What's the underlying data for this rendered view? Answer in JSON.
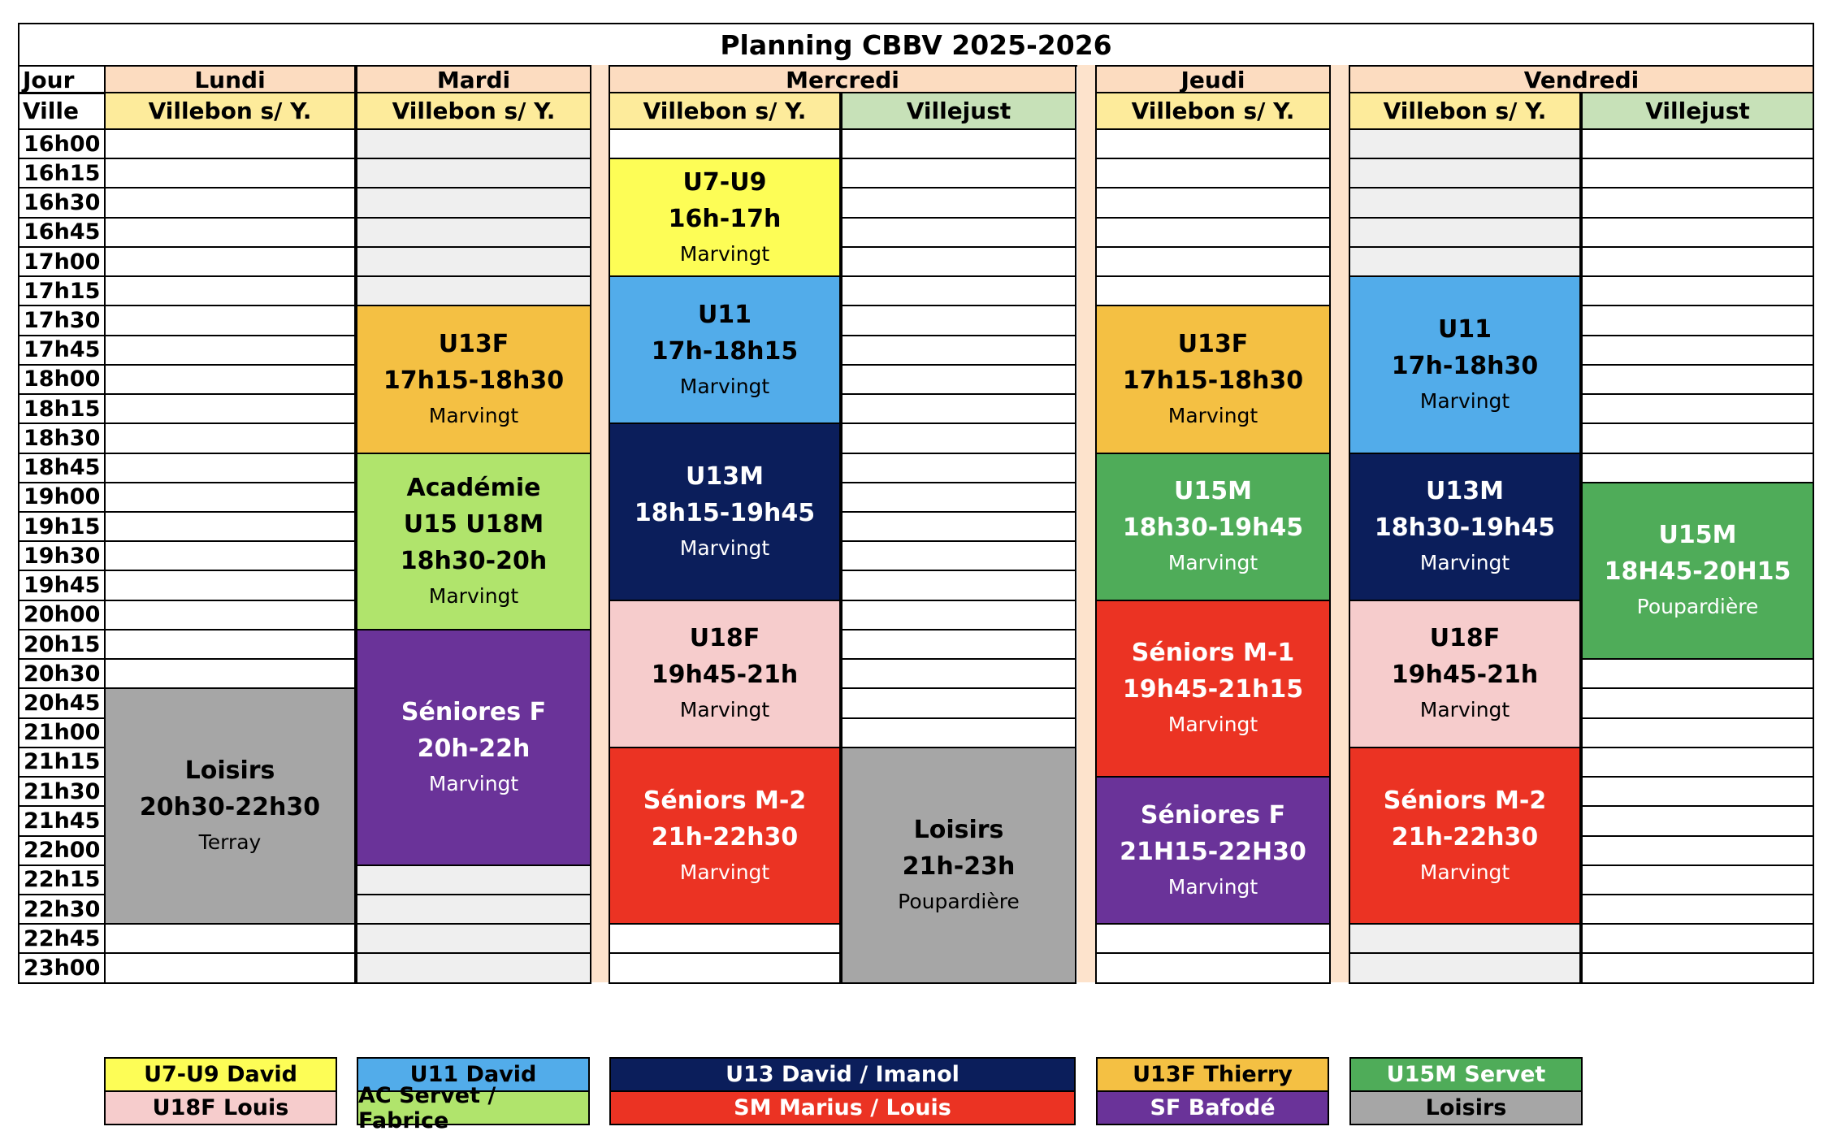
{
  "title": "Planning CBBV 2025-2026",
  "row_labels": {
    "jour": "Jour",
    "ville": "Ville"
  },
  "days": [
    {
      "name": "Lundi",
      "venues": [
        "Villebon s/ Y."
      ]
    },
    {
      "name": "Mardi",
      "venues": [
        "Villebon s/ Y."
      ]
    },
    {
      "name": "Mercredi",
      "venues": [
        "Villebon s/ Y.",
        "Villejust"
      ]
    },
    {
      "name": "Jeudi",
      "venues": [
        "Villebon s/ Y."
      ]
    },
    {
      "name": "Vendredi",
      "venues": [
        "Villebon s/ Y.",
        "Villejust"
      ]
    }
  ],
  "times": [
    "16h00",
    "16h15",
    "16h30",
    "16h45",
    "17h00",
    "17h15",
    "17h30",
    "17h45",
    "18h00",
    "18h15",
    "18h30",
    "18h45",
    "19h00",
    "19h15",
    "19h30",
    "19h45",
    "20h00",
    "20h15",
    "20h30",
    "20h45",
    "21h00",
    "21h15",
    "21h30",
    "21h45",
    "22h00",
    "22h15",
    "22h30",
    "22h45",
    "23h00"
  ],
  "colors": {
    "day_header": "#fcdcc0",
    "venue_villebon": "#fdeb9b",
    "venue_villejust": "#c7e1b8",
    "blank_shaded": "#efefef",
    "u7u9": "#fdfd56",
    "u11": "#52acea",
    "u13m": "#0b1e5b",
    "u13f": "#f4c043",
    "u15m": "#4fac59",
    "u18f": "#f6cccc",
    "academie": "#b0e46c",
    "seniors_f": "#6a3399",
    "seniors_m": "#eb3323",
    "loisirs": "#a6a6a6"
  },
  "shaded_columns": [
    1,
    5
  ],
  "events": [
    {
      "col": 0,
      "start": 19,
      "span": 8,
      "name": "Loisirs",
      "time": "20h30-22h30",
      "place": "Terray",
      "color_key": "loisirs",
      "text_color": "#000000"
    },
    {
      "col": 1,
      "start": 6,
      "span": 5,
      "name": "U13F",
      "time": "17h15-18h30",
      "place": "Marvingt",
      "color_key": "u13f",
      "text_color": "#000000"
    },
    {
      "col": 1,
      "start": 11,
      "span": 6,
      "name": "Académie\nU15 U18M",
      "time": "18h30-20h",
      "place": "Marvingt",
      "color_key": "academie",
      "text_color": "#000000"
    },
    {
      "col": 1,
      "start": 17,
      "span": 8,
      "name": "Séniores F",
      "time": "20h-22h",
      "place": "Marvingt",
      "color_key": "seniors_f",
      "text_color": "#ffffff"
    },
    {
      "col": 2,
      "start": 1,
      "span": 4,
      "name": "U7-U9",
      "time": "16h-17h",
      "place": "Marvingt",
      "color_key": "u7u9",
      "text_color": "#000000"
    },
    {
      "col": 2,
      "start": 5,
      "span": 5,
      "name": "U11",
      "time": "17h-18h15",
      "place": "Marvingt",
      "color_key": "u11",
      "text_color": "#000000"
    },
    {
      "col": 2,
      "start": 10,
      "span": 6,
      "name": "U13M",
      "time": "18h15-19h45",
      "place": "Marvingt",
      "color_key": "u13m",
      "text_color": "#ffffff"
    },
    {
      "col": 2,
      "start": 16,
      "span": 5,
      "name": "U18F",
      "time": "19h45-21h",
      "place": "Marvingt",
      "color_key": "u18f",
      "text_color": "#000000"
    },
    {
      "col": 2,
      "start": 21,
      "span": 6,
      "name": "Séniors M-2",
      "time": "21h-22h30",
      "place": "Marvingt",
      "color_key": "seniors_m",
      "text_color": "#ffffff"
    },
    {
      "col": 3,
      "start": 21,
      "span": 8,
      "name": "Loisirs",
      "time": "21h-23h",
      "place": "Poupardière",
      "color_key": "loisirs",
      "text_color": "#000000"
    },
    {
      "col": 4,
      "start": 6,
      "span": 5,
      "name": "U13F",
      "time": "17h15-18h30",
      "place": "Marvingt",
      "color_key": "u13f",
      "text_color": "#000000"
    },
    {
      "col": 4,
      "start": 11,
      "span": 5,
      "name": "U15M",
      "time": "18h30-19h45",
      "place": "Marvingt",
      "color_key": "u15m",
      "text_color": "#ffffff"
    },
    {
      "col": 4,
      "start": 16,
      "span": 6,
      "name": "Séniors M-1",
      "time": "19h45-21h15",
      "place": "Marvingt",
      "color_key": "seniors_m",
      "text_color": "#ffffff"
    },
    {
      "col": 4,
      "start": 22,
      "span": 5,
      "name": "Séniores F",
      "time": "21H15-22H30",
      "place": "Marvingt",
      "color_key": "seniors_f",
      "text_color": "#ffffff"
    },
    {
      "col": 5,
      "start": 5,
      "span": 6,
      "name": "U11",
      "time": "17h-18h30",
      "place": "Marvingt",
      "color_key": "u11",
      "text_color": "#000000"
    },
    {
      "col": 5,
      "start": 11,
      "span": 5,
      "name": "U13M",
      "time": "18h30-19h45",
      "place": "Marvingt",
      "color_key": "u13m",
      "text_color": "#ffffff"
    },
    {
      "col": 5,
      "start": 16,
      "span": 5,
      "name": "U18F",
      "time": "19h45-21h",
      "place": "Marvingt",
      "color_key": "u18f",
      "text_color": "#000000"
    },
    {
      "col": 5,
      "start": 21,
      "span": 6,
      "name": "Séniors M-2",
      "time": "21h-22h30",
      "place": "Marvingt",
      "color_key": "seniors_m",
      "text_color": "#ffffff"
    },
    {
      "col": 6,
      "start": 12,
      "span": 6,
      "name": "U15M",
      "time": "18H45-20H15",
      "place": "Poupardière",
      "color_key": "u15m",
      "text_color": "#ffffff"
    }
  ],
  "legend": [
    {
      "label": "U7-U9 David",
      "color_key": "u7u9",
      "text_color": "#000000"
    },
    {
      "label": "U11 David",
      "color_key": "u11",
      "text_color": "#000000"
    },
    {
      "label": "U13 David / Imanol",
      "color_key": "u13m",
      "text_color": "#ffffff"
    },
    {
      "label": "U13F Thierry",
      "color_key": "u13f",
      "text_color": "#000000"
    },
    {
      "label": "U15M Servet",
      "color_key": "u15m",
      "text_color": "#ffffff"
    },
    {
      "label": "U18F Louis",
      "color_key": "u18f",
      "text_color": "#000000"
    },
    {
      "label": "AC Servet / Fabrice",
      "color_key": "academie",
      "text_color": "#000000"
    },
    {
      "label": "SM Marius / Louis",
      "color_key": "seniors_m",
      "text_color": "#ffffff"
    },
    {
      "label": "SF Bafodé",
      "color_key": "seniors_f",
      "text_color": "#ffffff"
    },
    {
      "label": "Loisirs",
      "color_key": "loisirs",
      "text_color": "#000000"
    }
  ]
}
